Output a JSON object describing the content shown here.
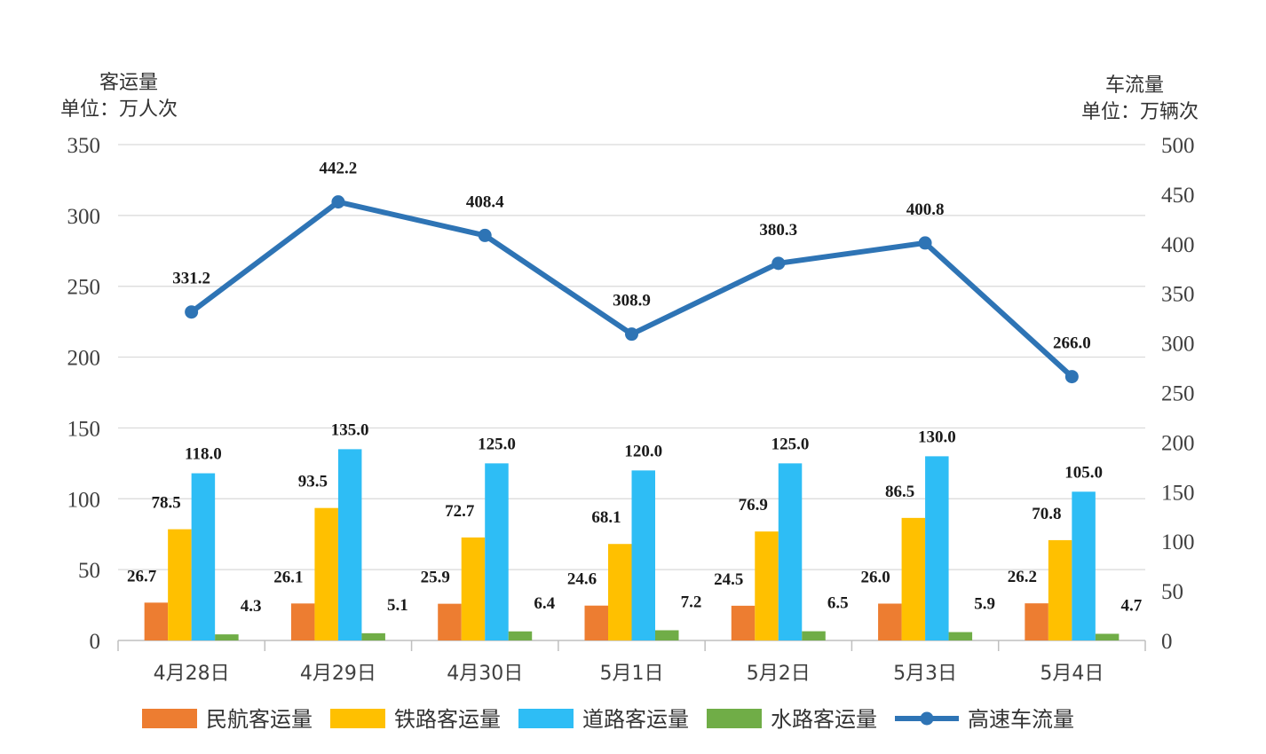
{
  "chart_data": {
    "type": "bar",
    "categories": [
      "4月28日",
      "4月29日",
      "4月30日",
      "5月1日",
      "5月2日",
      "5月3日",
      "5月4日"
    ],
    "y_left": {
      "title": "客运量",
      "unit": "单位：万人次",
      "ylim": [
        0,
        350
      ],
      "ticks": [
        "0",
        "50",
        "100",
        "150",
        "200",
        "250",
        "300",
        "350"
      ]
    },
    "y_right": {
      "title": "车流量",
      "unit": "单位：万辆次",
      "ylim": [
        0,
        500
      ],
      "ticks": [
        "0",
        "50",
        "100",
        "150",
        "200",
        "250",
        "300",
        "350",
        "400",
        "450",
        "500"
      ]
    },
    "grid": true,
    "legend_position": "bottom",
    "series": [
      {
        "name": "民航客运量",
        "type": "bar",
        "axis": "left",
        "color": "#ED7D31",
        "values": [
          26.7,
          26.1,
          25.9,
          24.6,
          24.5,
          26.0,
          26.2
        ],
        "labels": [
          "26.7",
          "26.1",
          "25.9",
          "24.6",
          "24.5",
          "26.0",
          "26.2"
        ]
      },
      {
        "name": "铁路客运量",
        "type": "bar",
        "axis": "left",
        "color": "#FFC000",
        "values": [
          78.5,
          93.5,
          72.7,
          68.1,
          76.9,
          86.5,
          70.8
        ],
        "labels": [
          "78.5",
          "93.5",
          "72.7",
          "68.1",
          "76.9",
          "86.5",
          "70.8"
        ]
      },
      {
        "name": "道路客运量",
        "type": "bar",
        "axis": "left",
        "color": "#2EBDF5",
        "values": [
          118.0,
          135.0,
          125.0,
          120.0,
          125.0,
          130.0,
          105.0
        ],
        "labels": [
          "118.0",
          "135.0",
          "125.0",
          "120.0",
          "125.0",
          "130.0",
          "105.0"
        ]
      },
      {
        "name": "水路客运量",
        "type": "bar",
        "axis": "left",
        "color": "#70AD47",
        "values": [
          4.3,
          5.1,
          6.4,
          7.2,
          6.5,
          5.9,
          4.7
        ],
        "labels": [
          "4.3",
          "5.1",
          "6.4",
          "7.2",
          "6.5",
          "5.9",
          "4.7"
        ]
      },
      {
        "name": "高速车流量",
        "type": "line",
        "axis": "right",
        "color": "#2E74B5",
        "values": [
          331.2,
          442.2,
          408.4,
          308.9,
          380.3,
          400.8,
          266.0
        ],
        "labels": [
          "331.2",
          "442.2",
          "408.4",
          "308.9",
          "380.3",
          "400.8",
          "266.0"
        ]
      }
    ]
  }
}
